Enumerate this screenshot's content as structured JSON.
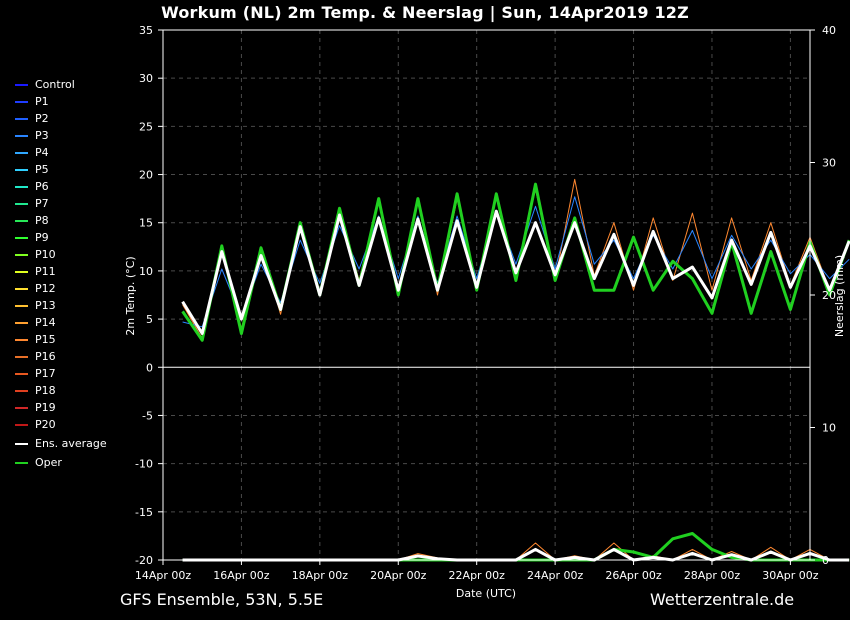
{
  "title": "Workum  (NL)  2m Temp. & Neerslag | Sun, 14Apr2019 12Z",
  "footer_left": "GFS Ensemble, 53N, 5.5E",
  "footer_right": "Wetterzentrale.de",
  "chart_data": {
    "type": "line",
    "title": "Workum  (NL)  2m Temp. & Neerslag | Sun, 14Apr2019 12Z",
    "xlabel": "Date (UTC)",
    "ylabel_left": "2m Temp. (°C)",
    "ylabel_right": "Neerslag (mm)",
    "ylim_left": [
      -20,
      35
    ],
    "ylim_right": [
      0,
      40
    ],
    "yticks_left": [
      "35",
      "30",
      "25",
      "20",
      "15",
      "10",
      "5",
      "0",
      "-5",
      "-10",
      "-15",
      "-20"
    ],
    "yticks_right": [
      "40",
      "30",
      "20",
      "10",
      "0"
    ],
    "xticks": [
      "14Apr 00z",
      "16Apr 00z",
      "18Apr 00z",
      "20Apr 00z",
      "22Apr 00z",
      "24Apr 00z",
      "26Apr 00z",
      "28Apr 00z",
      "30Apr 00z"
    ],
    "x_start": "14Apr2019 00z",
    "x_end": "30Apr2019 12z",
    "grid": true,
    "legend_position": "left",
    "legend": [
      "Control",
      "P1",
      "P2",
      "P3",
      "P4",
      "P5",
      "P6",
      "P7",
      "P8",
      "P9",
      "P10",
      "P11",
      "P12",
      "P13",
      "P14",
      "P15",
      "P16",
      "P17",
      "P18",
      "P19",
      "P20",
      "Ens. average",
      "Oper"
    ],
    "legend_colors": [
      "#1a1aff",
      "#1f3dff",
      "#2060ff",
      "#2a85ff",
      "#30a8ff",
      "#30d0ff",
      "#20e8c8",
      "#20e890",
      "#28e858",
      "#30ff30",
      "#80ff20",
      "#e0ff20",
      "#ffe030",
      "#ffc030",
      "#ffa030",
      "#ff8830",
      "#e87028",
      "#e85820",
      "#e04020",
      "#d02828",
      "#c01818",
      "#ffffff",
      "#20d020"
    ],
    "temp_ens_average": [
      6.8,
      3.5,
      12.0,
      5.0,
      11.6,
      6.0,
      14.6,
      7.5,
      15.8,
      8.5,
      15.5,
      8.0,
      15.4,
      8.0,
      15.2,
      8.3,
      16.2,
      9.8,
      15.0,
      9.6,
      15.0,
      9.2,
      13.8,
      8.5,
      14.1,
      9.2,
      10.4,
      7.2,
      13.2,
      8.6,
      14.0,
      8.3,
      12.6,
      8.0,
      13.1
    ],
    "temp_oper": [
      5.8,
      2.8,
      12.6,
      3.5,
      12.4,
      6.0,
      15.0,
      7.5,
      16.5,
      8.5,
      17.5,
      7.5,
      17.5,
      8.0,
      18.0,
      8.0,
      18.0,
      9.0,
      19.0,
      9.0,
      15.5,
      8.0,
      8.0,
      13.5,
      8.0,
      11.0,
      9.2,
      5.6,
      13.0,
      5.6,
      12.0,
      6.0,
      13.0,
      7.5,
      13.2
    ],
    "temp_control_hi": [
      6.5,
      3.0,
      12.0,
      4.0,
      12.5,
      5.5,
      15.0,
      7.5,
      16.5,
      9.0,
      17.5,
      8.0,
      17.5,
      7.5,
      17.5,
      8.0,
      18.0,
      9.5,
      18.5,
      9.0,
      19.5,
      9.5,
      15.0,
      8.0,
      15.5,
      9.0,
      16.0,
      8.0,
      15.5,
      9.0,
      15.0,
      8.5,
      13.5,
      8.0,
      13.0
    ],
    "precip_ens_average": [
      0,
      0,
      0,
      0,
      0,
      0,
      0,
      0,
      0,
      0,
      0,
      0,
      0.3,
      0.1,
      0,
      0,
      0,
      0,
      0.8,
      0,
      0.2,
      0,
      0.8,
      0,
      0.2,
      0,
      0.5,
      0,
      0.4,
      0,
      0.6,
      0,
      0.5,
      0,
      0
    ],
    "precip_oper": [
      0,
      0,
      0,
      0,
      0,
      0,
      0,
      0,
      0,
      0,
      0,
      0,
      0,
      0,
      0,
      0,
      0,
      0,
      0,
      0,
      0,
      0,
      0.8,
      0.6,
      0.2,
      1.6,
      2.0,
      0.8,
      0.2,
      0,
      0,
      0,
      0,
      0,
      0
    ]
  }
}
